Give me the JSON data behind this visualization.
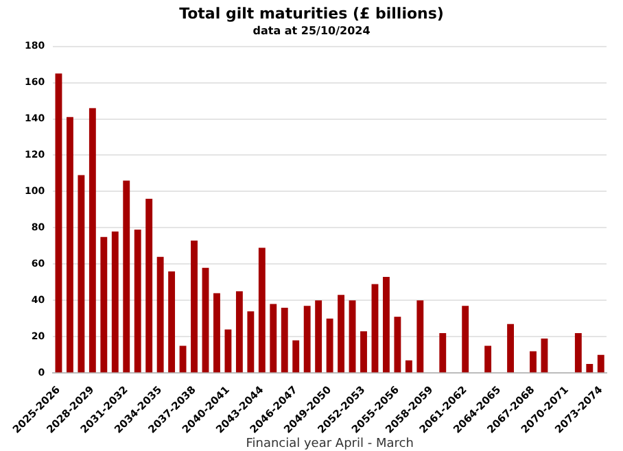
{
  "chart_data": {
    "type": "bar",
    "title": "Total gilt maturities (£ billions)",
    "subtitle": "data at 25/10/2024",
    "xlabel": "Financial year April - March",
    "categories": [
      "2025-2026",
      null,
      null,
      "2028-2029",
      null,
      null,
      "2031-2032",
      null,
      null,
      "2034-2035",
      null,
      null,
      "2037-2038",
      null,
      null,
      "2040-2041",
      null,
      null,
      "2043-2044",
      null,
      null,
      "2046-2047",
      null,
      null,
      "2049-2050",
      null,
      null,
      "2052-2053",
      null,
      null,
      "2055-2056",
      null,
      null,
      "2058-2059",
      null,
      null,
      "2061-2062",
      null,
      null,
      "2064-2065",
      null,
      null,
      "2067-2068",
      null,
      null,
      "2070-2071",
      null,
      null,
      "2073-2074"
    ],
    "values": [
      165,
      141,
      109,
      146,
      75,
      78,
      106,
      79,
      96,
      64,
      56,
      15,
      73,
      58,
      44,
      24,
      45,
      34,
      69,
      38,
      36,
      18,
      37,
      40,
      30,
      43,
      40,
      23,
      49,
      53,
      31,
      7,
      40,
      0,
      22,
      0,
      37,
      0,
      15,
      0,
      27,
      0,
      12,
      19,
      0,
      0,
      22,
      5,
      10
    ],
    "color": "#a50000",
    "ylim": [
      0,
      180
    ],
    "yticks": [
      0,
      20,
      40,
      60,
      80,
      100,
      120,
      140,
      160,
      180
    ],
    "grid": "y",
    "legend": false
  }
}
